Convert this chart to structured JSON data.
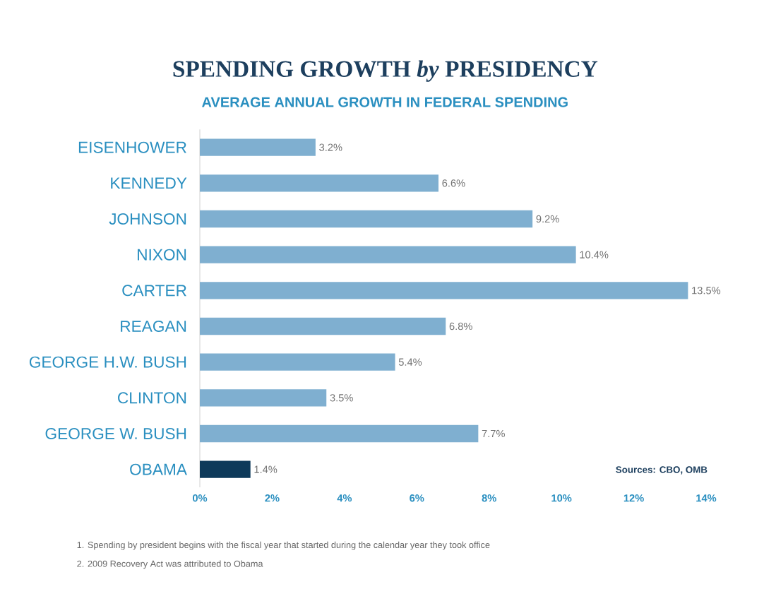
{
  "chart_data": {
    "type": "bar",
    "orientation": "horizontal",
    "title": "SPENDING GROWTH *by* PRESIDENCY",
    "subtitle": "AVERAGE ANNUAL GROWTH IN FEDERAL SPENDING",
    "categories": [
      "EISENHOWER",
      "KENNEDY",
      "JOHNSON",
      "NIXON",
      "CARTER",
      "REAGAN",
      "GEORGE H.W. BUSH",
      "CLINTON",
      "GEORGE W. BUSH",
      "OBAMA"
    ],
    "values": [
      3.2,
      6.6,
      9.2,
      10.4,
      13.5,
      6.8,
      5.4,
      3.5,
      7.7,
      1.4
    ],
    "value_labels": [
      "3.2%",
      "6.6%",
      "9.2%",
      "10.4%",
      "13.5%",
      "6.8%",
      "5.4%",
      "3.5%",
      "7.7%",
      "1.4%"
    ],
    "colors": [
      "#7fafd0",
      "#7fafd0",
      "#7fafd0",
      "#7fafd0",
      "#7fafd0",
      "#7fafd0",
      "#7fafd0",
      "#7fafd0",
      "#7fafd0",
      "#0e3a5a"
    ],
    "xlim": [
      0,
      14
    ],
    "xticks": [
      {
        "value": 0,
        "label": "0%"
      },
      {
        "value": 2,
        "label": "2%"
      },
      {
        "value": 4,
        "label": "4%"
      },
      {
        "value": 6,
        "label": "6%"
      },
      {
        "value": 8,
        "label": "8%"
      },
      {
        "value": 10,
        "label": "10%"
      },
      {
        "value": 12,
        "label": "12%"
      },
      {
        "value": 14,
        "label": "14%"
      }
    ],
    "annotations": [
      "Sources: CBO, OMB",
      "1. Spending by president begins with the fiscal year that started during the calendar year they took office",
      "2. 2009 Recovery Act was attributed to Obama"
    ]
  }
}
